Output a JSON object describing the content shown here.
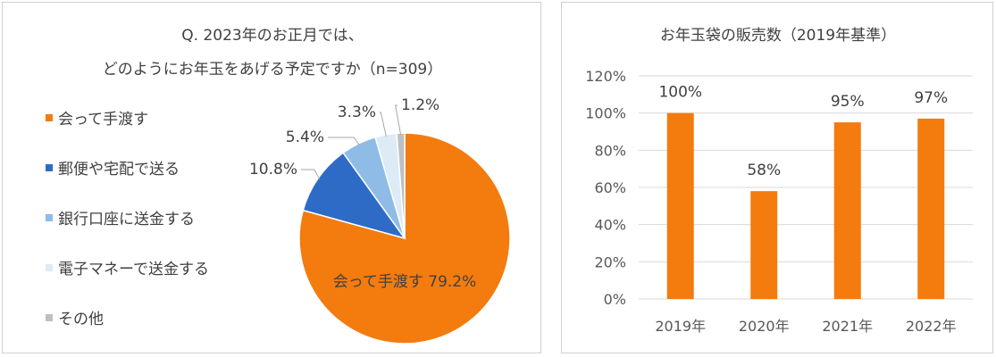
{
  "chart_data": [
    {
      "type": "pie",
      "title_line1": "Q. 2023年のお正月では、",
      "title_line2": "どのようにお年玉をあげる予定ですか（n=309）",
      "slices": [
        {
          "name": "会って手渡す",
          "value": 79.2,
          "label": "会って手渡す 79.2%",
          "color": "#F47B0E"
        },
        {
          "name": "郵便や宅配で送る",
          "value": 10.8,
          "label": "10.8%",
          "color": "#2E6BC6"
        },
        {
          "name": "銀行口座に送金する",
          "value": 5.4,
          "label": "5.4%",
          "color": "#8FBCE6"
        },
        {
          "name": "電子マネーで送金する",
          "value": 3.3,
          "label": "3.3%",
          "color": "#DDEBF7"
        },
        {
          "name": "その他",
          "value": 1.2,
          "label": "1.2%",
          "color": "#BFBFBF"
        }
      ],
      "legend_position": "left"
    },
    {
      "type": "bar",
      "title": "お年玉袋の販売数（2019年基準）",
      "categories": [
        "2019年",
        "2020年",
        "2021年",
        "2022年"
      ],
      "values": [
        100,
        58,
        95,
        97
      ],
      "value_labels": [
        "100%",
        "58%",
        "95%",
        "97%"
      ],
      "ylim": [
        0,
        120
      ],
      "yticks": [
        "0%",
        "20%",
        "40%",
        "60%",
        "80%",
        "100%",
        "120%"
      ],
      "color": "#F47B0E",
      "grid": true
    }
  ]
}
